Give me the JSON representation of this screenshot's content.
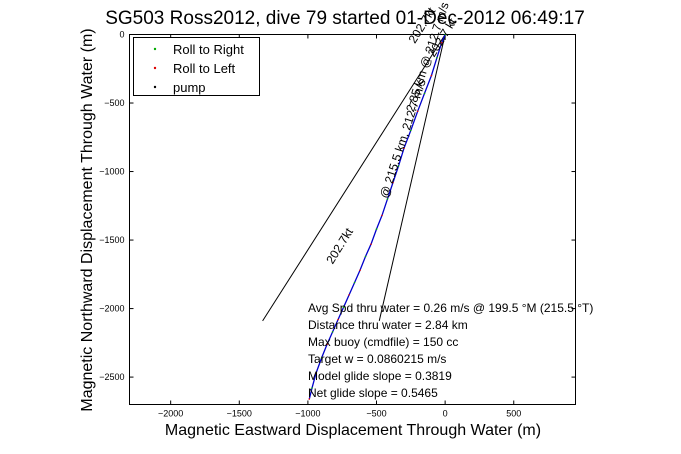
{
  "chart_data": {
    "type": "line",
    "title": "SG503 Ross2012, dive 79 started 01-Dec-2012 06:49:17",
    "xlabel": "Magnetic Eastward Displacement Through Water (m)",
    "ylabel": "Magnetic Northward Displacement Through Water (m)",
    "xlim": [
      -2300,
      950
    ],
    "ylim": [
      -2700,
      0
    ],
    "xticks": [
      -2000,
      -1500,
      -1000,
      -500,
      0,
      500
    ],
    "yticks": [
      0,
      -500,
      -1000,
      -1500,
      -2000,
      -2500
    ],
    "grid": false,
    "legend_position": "top-left",
    "legend": [
      {
        "label": "Roll to Right",
        "color": "#00aa00",
        "marker": "."
      },
      {
        "label": "Roll to Left",
        "color": "#dd0000",
        "marker": "."
      },
      {
        "label": "pump",
        "color": "#000000",
        "marker": "."
      }
    ],
    "series": [
      {
        "color": "#0000cc",
        "x": [
          0,
          -25,
          -60,
          -100,
          -150,
          -200,
          -250,
          -300,
          -340,
          -380,
          -420,
          -460,
          -500,
          -540,
          -580,
          -620,
          -660,
          -700,
          -740,
          -780,
          -820,
          -860,
          -900,
          -940,
          -970,
          -990
        ],
        "y": [
          0,
          -60,
          -170,
          -300,
          -430,
          -560,
          -700,
          -830,
          -960,
          -1080,
          -1200,
          -1320,
          -1420,
          -1530,
          -1620,
          -1720,
          -1810,
          -1900,
          -1990,
          -2080,
          -2170,
          -2260,
          -2360,
          -2470,
          -2580,
          -2660
        ]
      }
    ],
    "lines": [
      {
        "color": "#000000",
        "x": [
          0,
          -1330
        ],
        "y": [
          0,
          -2090
        ]
      },
      {
        "color": "#000000",
        "x": [
          0,
          -480
        ],
        "y": [
          0,
          -2090
        ]
      }
    ],
    "annotations": [
      {
        "text": "202.7kt",
        "x": -220,
        "y": -70,
        "rotation": -58
      },
      {
        "text": "202.7 kt",
        "x": -80,
        "y": -170,
        "rotation": -58
      },
      {
        "text": "2.85 km @ 212.7 m/s",
        "x": -230,
        "y": -570,
        "rotation": -72
      },
      {
        "text": "@ 215.5 km, 212.7 m/s",
        "x": -420,
        "y": -1200,
        "rotation": -72
      },
      {
        "text": "202.7kt",
        "x": -820,
        "y": -1680,
        "rotation": -58
      }
    ],
    "stats": [
      "Avg Spd thru water = 0.26 m/s @ 199.5   °M (215.5 °T)",
      "Distance thru water = 2.84 km",
      "Max buoy (cmdfile) = 150 cc",
      "Target w = 0.0860215 m/s",
      "Model glide slope = 0.3819",
      "Net glide slope = 0.5465"
    ]
  }
}
